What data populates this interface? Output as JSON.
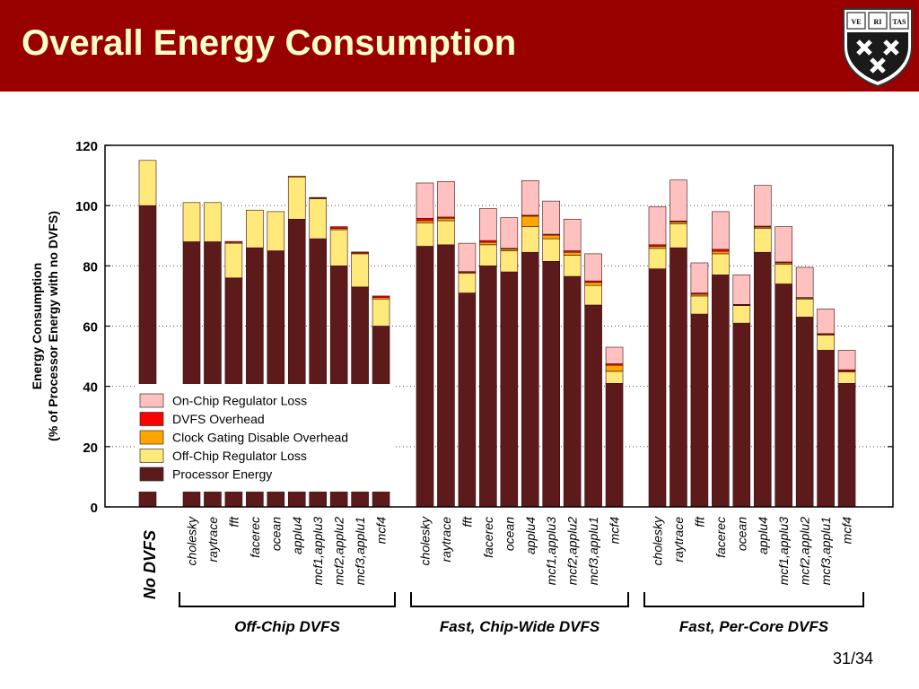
{
  "slide": {
    "title": "Overall Energy Consumption",
    "page_number": "31/34",
    "title_bar_color": "#990000",
    "title_text_color": "#ffffcc",
    "logo": {
      "icon": "harvard-shield-logo",
      "text": "VE RI TAS"
    }
  },
  "chart_data": {
    "type": "bar",
    "stacked": true,
    "ylabel": [
      "Energy Consumption",
      "(% of Processor Energy with no DVFS)"
    ],
    "ylim": [
      0,
      120
    ],
    "yticks": [
      0,
      20,
      40,
      60,
      80,
      100,
      120
    ],
    "grid": "horizontal-dotted",
    "legend_position": "inside-bottom-left",
    "legend": [
      {
        "name": "On-Chip Regulator Loss",
        "color": "#ffc0c0"
      },
      {
        "name": "DVFS Overhead",
        "color": "#ff0000"
      },
      {
        "name": "Clock Gating Disable Overhead",
        "color": "#ffa500"
      },
      {
        "name": "Off-Chip Regulator Loss",
        "color": "#ffe97a"
      },
      {
        "name": "Processor Energy",
        "color": "#5c1a1a"
      }
    ],
    "series_order": [
      "Processor Energy",
      "Off-Chip Regulator Loss",
      "Clock Gating Disable Overhead",
      "DVFS Overhead",
      "On-Chip Regulator Loss"
    ],
    "groups": [
      {
        "label": "No DVFS",
        "bars": [
          {
            "label": "",
            "values": [
              100,
              15,
              0,
              0,
              0
            ]
          }
        ]
      },
      {
        "label": "Off-Chip DVFS",
        "bars": [
          {
            "label": "cholesky",
            "values": [
              88,
              13,
              0,
              0,
              0
            ]
          },
          {
            "label": "raytrace",
            "values": [
              88,
              13,
              0,
              0,
              0
            ]
          },
          {
            "label": "fft",
            "values": [
              76,
              11.5,
              0.3,
              0.3,
              0
            ]
          },
          {
            "label": "facerec",
            "values": [
              86,
              12.5,
              0,
              0,
              0
            ]
          },
          {
            "label": "ocean",
            "values": [
              85,
              13,
              0,
              0,
              0
            ]
          },
          {
            "label": "applu4",
            "values": [
              95.5,
              14,
              0.3,
              0,
              0
            ]
          },
          {
            "label": "mcf1,applu3",
            "values": [
              89,
              13.3,
              0.2,
              0.2,
              0
            ]
          },
          {
            "label": "mcf2,applu2",
            "values": [
              80,
              12,
              0.4,
              0.6,
              0
            ]
          },
          {
            "label": "mcf3,applu1",
            "values": [
              73,
              11,
              0.3,
              0.3,
              0
            ]
          },
          {
            "label": "mcf4",
            "values": [
              60,
              9,
              0.5,
              0.5,
              0
            ]
          }
        ]
      },
      {
        "label": "Fast, Chip-Wide DVFS",
        "bars": [
          {
            "label": "cholesky",
            "values": [
              86.5,
              7.8,
              0.7,
              0.8,
              11.7
            ]
          },
          {
            "label": "raytrace",
            "values": [
              87,
              8,
              0.8,
              0.4,
              11.8
            ]
          },
          {
            "label": "fft",
            "values": [
              71,
              6.5,
              0.3,
              0.3,
              9.4
            ]
          },
          {
            "label": "facerec",
            "values": [
              80,
              7,
              0.8,
              0.6,
              10.6
            ]
          },
          {
            "label": "ocean",
            "values": [
              78,
              7,
              0.6,
              0.2,
              10.2
            ]
          },
          {
            "label": "applu4",
            "values": [
              84.5,
              8.5,
              3.5,
              0.3,
              11.5
            ]
          },
          {
            "label": "mcf1,applu3",
            "values": [
              81.5,
              7.5,
              1.2,
              0.3,
              11
            ]
          },
          {
            "label": "mcf2,applu2",
            "values": [
              76.5,
              7,
              1,
              0.5,
              10.5
            ]
          },
          {
            "label": "mcf3,applu1",
            "values": [
              67,
              6.5,
              1,
              0.5,
              9
            ]
          },
          {
            "label": "mcf4",
            "values": [
              41,
              4,
              2,
              0.5,
              5.5
            ]
          }
        ]
      },
      {
        "label": "Fast, Per-Core DVFS",
        "bars": [
          {
            "label": "cholesky",
            "values": [
              79,
              6.8,
              0.7,
              0.5,
              12.6
            ]
          },
          {
            "label": "raytrace",
            "values": [
              86,
              8,
              0.6,
              0.3,
              13.6
            ]
          },
          {
            "label": "fft",
            "values": [
              64,
              6,
              0.6,
              0.4,
              10
            ]
          },
          {
            "label": "facerec",
            "values": [
              77,
              7,
              0.8,
              0.7,
              12.5
            ]
          },
          {
            "label": "ocean",
            "values": [
              61,
              5.8,
              0.2,
              0.2,
              9.8
            ]
          },
          {
            "label": "applu4",
            "values": [
              84.5,
              8,
              0.4,
              0.3,
              13.5
            ]
          },
          {
            "label": "mcf1,applu3",
            "values": [
              74,
              6.5,
              0.5,
              0.3,
              11.7
            ]
          },
          {
            "label": "mcf2,applu2",
            "values": [
              63,
              6,
              0.3,
              0.2,
              10
            ]
          },
          {
            "label": "mcf3,applu1",
            "values": [
              52,
              5,
              0.3,
              0.2,
              8.2
            ]
          },
          {
            "label": "mcf4",
            "values": [
              41,
              3.8,
              0.3,
              0.4,
              6.5
            ]
          }
        ]
      }
    ]
  }
}
